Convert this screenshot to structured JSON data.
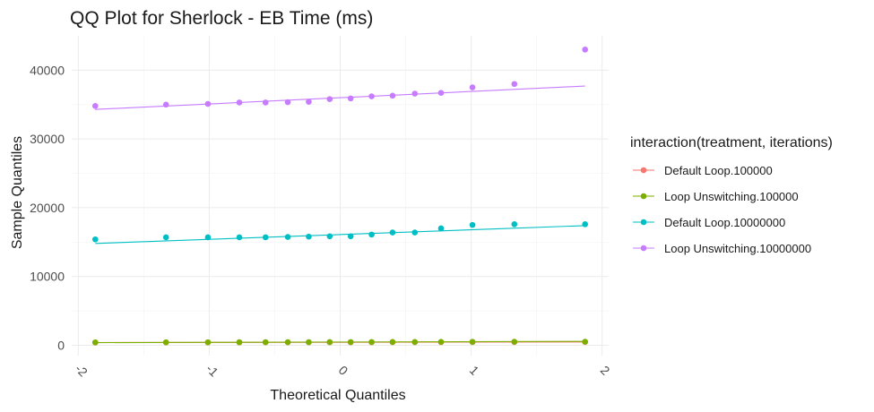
{
  "chart_data": {
    "type": "scatter",
    "title": "QQ Plot for Sherlock - EB Time (ms)",
    "xlabel": "Theoretical Quantiles",
    "ylabel": "Sample Quantiles",
    "xlim": [
      -2.05,
      2.05
    ],
    "ylim": [
      -1500,
      45000
    ],
    "x_ticks": [
      -2,
      -1,
      0,
      1,
      2
    ],
    "x_tick_labels": [
      "-2",
      "-1",
      "0",
      "1",
      "2"
    ],
    "y_ticks": [
      0,
      10000,
      20000,
      30000,
      40000
    ],
    "y_tick_labels": [
      "0",
      "10000",
      "20000",
      "30000",
      "40000"
    ],
    "grid": true,
    "legend_position": "right",
    "legend_title": "interaction(treatment, iterations)",
    "x": [
      -1.87,
      -1.33,
      -1.01,
      -0.77,
      -0.57,
      -0.4,
      -0.24,
      -0.08,
      0.08,
      0.24,
      0.4,
      0.57,
      0.77,
      1.01,
      1.33,
      1.87
    ],
    "series": [
      {
        "name": "Default Loop.100000",
        "color": "#F8766D",
        "values": [
          400,
          410,
          415,
          420,
          425,
          430,
          432,
          435,
          438,
          440,
          445,
          450,
          455,
          460,
          470,
          480
        ],
        "line": [
          390,
          480
        ]
      },
      {
        "name": "Loop Unswitching.100000",
        "color": "#7CAE00",
        "values": [
          420,
          430,
          435,
          440,
          445,
          450,
          455,
          460,
          465,
          470,
          475,
          480,
          490,
          500,
          510,
          520
        ],
        "line": [
          380,
          560
        ]
      },
      {
        "name": "Default Loop.10000000",
        "color": "#00BFC4",
        "values": [
          15400,
          15700,
          15700,
          15700,
          15700,
          15750,
          15800,
          15850,
          15850,
          16100,
          16400,
          16400,
          17000,
          17500,
          17600,
          17600
        ],
        "line": [
          14800,
          17400
        ]
      },
      {
        "name": "Loop Unswitching.10000000",
        "color": "#C77CFF",
        "values": [
          34800,
          35000,
          35100,
          35300,
          35300,
          35350,
          35400,
          35800,
          35900,
          36200,
          36300,
          36600,
          36700,
          37500,
          38000,
          43000
        ],
        "line": [
          34300,
          37700
        ]
      }
    ]
  }
}
